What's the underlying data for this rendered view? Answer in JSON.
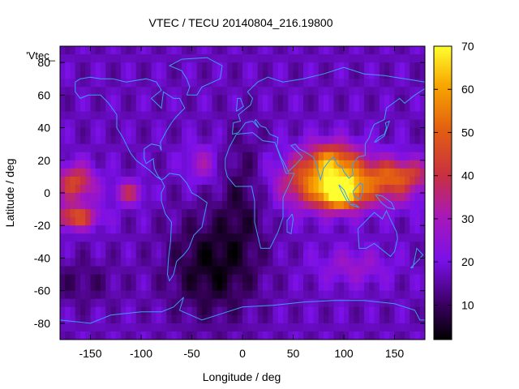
{
  "chart_data": {
    "type": "heatmap",
    "title": "VTEC / TECU 20140804_216.19800",
    "xlabel": "Longitude / deg",
    "ylabel": "Latitude / deg",
    "series_label": "'Vtec_",
    "xlim": [
      -180,
      180
    ],
    "ylim": [
      -90,
      90
    ],
    "x_ticks": [
      -150,
      -100,
      -50,
      0,
      50,
      100,
      150
    ],
    "y_ticks": [
      -80,
      -60,
      -40,
      -20,
      0,
      20,
      40,
      60,
      80
    ],
    "colorbar": {
      "range": [
        2,
        70
      ],
      "ticks": [
        10,
        20,
        30,
        40,
        50,
        60,
        70
      ],
      "palette": "black-purple-red-orange-yellow"
    },
    "grid": false,
    "features": [
      {
        "lon": 95,
        "lat": 0,
        "value": 68,
        "note": "peak over Indian Ocean / Indonesia"
      },
      {
        "lon": 85,
        "lat": 20,
        "value": 55
      },
      {
        "lon": 140,
        "lat": 5,
        "value": 45
      },
      {
        "lon": -160,
        "lat": 5,
        "value": 45
      },
      {
        "lon": -165,
        "lat": -15,
        "value": 48
      },
      {
        "lon": -110,
        "lat": 0,
        "value": 40
      },
      {
        "lon": -40,
        "lat": -50,
        "value": 5,
        "note": "minimum over South Atlantic"
      },
      {
        "lon": 0,
        "lat": 0,
        "value": 12
      }
    ]
  }
}
